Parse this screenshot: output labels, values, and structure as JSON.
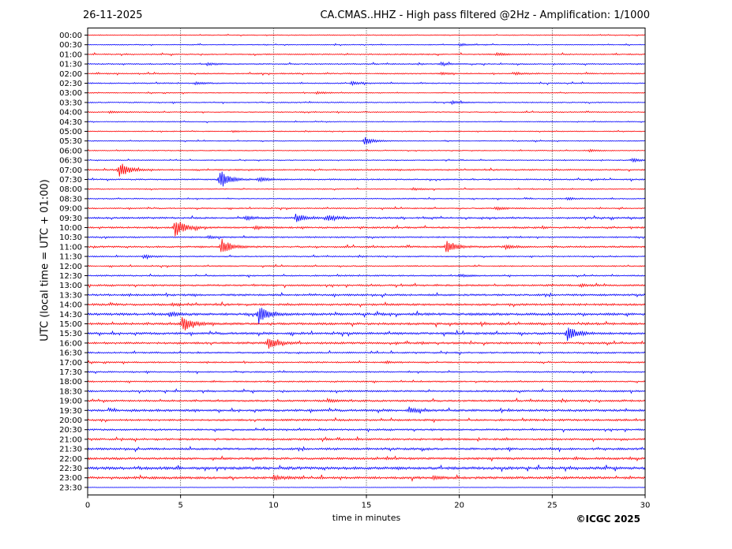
{
  "header": {
    "date": "26-11-2025",
    "title": "CA.CMAS..HHZ - High pass filtered @2Hz - Amplification: 1/1000"
  },
  "footer": {
    "copyright": "©ICGC 2025"
  },
  "chart_data": {
    "type": "line",
    "title": "CA.CMAS..HHZ - High pass filtered @2Hz - Amplification: 1/1000",
    "xlabel": "time in minutes",
    "ylabel": "UTC (local time = UTC + 01:00)",
    "xlim": [
      0,
      30
    ],
    "x_ticks": [
      "0",
      "5",
      "10",
      "15",
      "20",
      "25",
      "30"
    ],
    "x_tick_values": [
      0,
      5,
      10,
      15,
      20,
      25,
      30
    ],
    "grid": "vertical dotted lines at each x tick",
    "trace_colors": [
      "#ff0000",
      "#0000ff"
    ],
    "traces": [
      {
        "label": "00:00",
        "noise": 0.5,
        "events": []
      },
      {
        "label": "00:30",
        "noise": 0.5,
        "events": [
          {
            "minute": 20.0,
            "amp": 1.5
          }
        ]
      },
      {
        "label": "01:00",
        "noise": 0.7,
        "events": [
          {
            "minute": 22.0,
            "amp": 2
          }
        ]
      },
      {
        "label": "01:30",
        "noise": 0.7,
        "events": [
          {
            "minute": 6.5,
            "amp": 1.5
          },
          {
            "minute": 19.0,
            "amp": 2
          }
        ]
      },
      {
        "label": "02:00",
        "noise": 0.7,
        "events": [
          {
            "minute": 19.0,
            "amp": 1.5
          },
          {
            "minute": 23.0,
            "amp": 1.5
          }
        ]
      },
      {
        "label": "02:30",
        "noise": 0.7,
        "events": [
          {
            "minute": 5.8,
            "amp": 1.5
          },
          {
            "minute": 14.2,
            "amp": 2.5
          }
        ]
      },
      {
        "label": "03:00",
        "noise": 0.5,
        "events": [
          {
            "minute": 12.3,
            "amp": 1.5
          }
        ]
      },
      {
        "label": "03:30",
        "noise": 0.6,
        "events": [
          {
            "minute": 19.6,
            "amp": 2
          }
        ]
      },
      {
        "label": "04:00",
        "noise": 0.6,
        "events": [
          {
            "minute": 1.2,
            "amp": 1.5
          }
        ]
      },
      {
        "label": "04:30",
        "noise": 0.5,
        "events": []
      },
      {
        "label": "05:00",
        "noise": 0.5,
        "events": [
          {
            "minute": 7.8,
            "amp": 1
          }
        ]
      },
      {
        "label": "05:30",
        "noise": 0.5,
        "events": [
          {
            "minute": 14.9,
            "amp": 5
          }
        ]
      },
      {
        "label": "06:00",
        "noise": 0.5,
        "events": [
          {
            "minute": 27.0,
            "amp": 1.5
          }
        ]
      },
      {
        "label": "06:30",
        "noise": 0.5,
        "events": [
          {
            "minute": 29.3,
            "amp": 2.5
          }
        ]
      },
      {
        "label": "07:00",
        "noise": 0.8,
        "events": [
          {
            "minute": 1.7,
            "amp": 11
          }
        ]
      },
      {
        "label": "07:30",
        "noise": 0.8,
        "events": [
          {
            "minute": 7.1,
            "amp": 13
          },
          {
            "minute": 9.2,
            "amp": 3
          }
        ]
      },
      {
        "label": "08:00",
        "noise": 0.6,
        "events": [
          {
            "minute": 17.5,
            "amp": 1.5
          }
        ]
      },
      {
        "label": "08:30",
        "noise": 0.6,
        "events": [
          {
            "minute": 25.8,
            "amp": 1.5
          }
        ]
      },
      {
        "label": "09:00",
        "noise": 0.7,
        "events": [
          {
            "minute": 22.0,
            "amp": 2
          }
        ]
      },
      {
        "label": "09:30",
        "noise": 1.0,
        "events": [
          {
            "minute": 11.2,
            "amp": 6
          },
          {
            "minute": 12.9,
            "amp": 4
          },
          {
            "minute": 8.5,
            "amp": 2.5
          }
        ]
      },
      {
        "label": "10:00",
        "noise": 1.0,
        "events": [
          {
            "minute": 4.7,
            "amp": 12
          },
          {
            "minute": 9.0,
            "amp": 2
          }
        ]
      },
      {
        "label": "10:30",
        "noise": 0.8,
        "events": [
          {
            "minute": 6.5,
            "amp": 2
          }
        ]
      },
      {
        "label": "11:00",
        "noise": 1.0,
        "events": [
          {
            "minute": 7.2,
            "amp": 10
          },
          {
            "minute": 19.3,
            "amp": 9
          },
          {
            "minute": 22.5,
            "amp": 2.5
          }
        ]
      },
      {
        "label": "11:30",
        "noise": 0.7,
        "events": [
          {
            "minute": 3.0,
            "amp": 2
          }
        ]
      },
      {
        "label": "12:00",
        "noise": 0.7,
        "events": []
      },
      {
        "label": "12:30",
        "noise": 0.8,
        "events": [
          {
            "minute": 20.0,
            "amp": 1.5
          }
        ]
      },
      {
        "label": "13:00",
        "noise": 1.0,
        "events": [
          {
            "minute": 26.5,
            "amp": 1.5
          }
        ]
      },
      {
        "label": "13:30",
        "noise": 1.1,
        "events": []
      },
      {
        "label": "14:00",
        "noise": 1.2,
        "events": [
          {
            "minute": 4.5,
            "amp": 1.5
          }
        ]
      },
      {
        "label": "14:30",
        "noise": 1.4,
        "events": [
          {
            "minute": 9.2,
            "amp": 11
          },
          {
            "minute": 4.4,
            "amp": 3
          }
        ]
      },
      {
        "label": "15:00",
        "noise": 1.3,
        "events": [
          {
            "minute": 5.1,
            "amp": 11
          }
        ]
      },
      {
        "label": "15:30",
        "noise": 1.3,
        "events": [
          {
            "minute": 25.8,
            "amp": 10
          }
        ]
      },
      {
        "label": "16:00",
        "noise": 1.2,
        "events": [
          {
            "minute": 9.7,
            "amp": 7
          }
        ]
      },
      {
        "label": "16:30",
        "noise": 0.9,
        "events": []
      },
      {
        "label": "17:00",
        "noise": 0.8,
        "events": [
          {
            "minute": 16.0,
            "amp": 1.5
          }
        ]
      },
      {
        "label": "17:30",
        "noise": 0.8,
        "events": []
      },
      {
        "label": "18:00",
        "noise": 0.8,
        "events": []
      },
      {
        "label": "18:30",
        "noise": 1.0,
        "events": []
      },
      {
        "label": "19:00",
        "noise": 1.1,
        "events": [
          {
            "minute": 13.0,
            "amp": 1.5
          }
        ]
      },
      {
        "label": "19:30",
        "noise": 1.3,
        "events": [
          {
            "minute": 17.3,
            "amp": 3
          }
        ]
      },
      {
        "label": "20:00",
        "noise": 1.1,
        "events": []
      },
      {
        "label": "20:30",
        "noise": 1.0,
        "events": []
      },
      {
        "label": "21:00",
        "noise": 1.1,
        "events": []
      },
      {
        "label": "21:30",
        "noise": 1.2,
        "events": []
      },
      {
        "label": "22:00",
        "noise": 1.3,
        "events": []
      },
      {
        "label": "22:30",
        "noise": 1.6,
        "events": []
      },
      {
        "label": "23:00",
        "noise": 1.4,
        "events": [
          {
            "minute": 10.0,
            "amp": 3
          },
          {
            "minute": 18.6,
            "amp": 2
          }
        ]
      },
      {
        "label": "23:30",
        "noise": 0.2,
        "events": []
      }
    ]
  }
}
